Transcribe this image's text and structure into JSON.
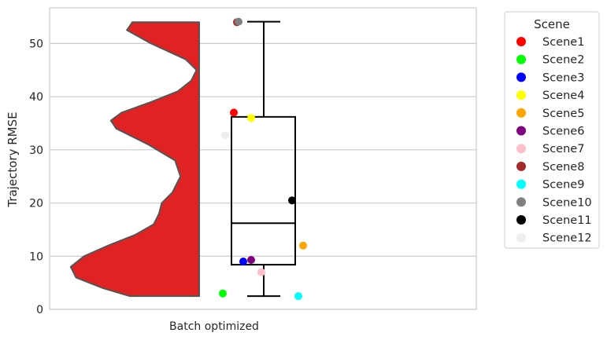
{
  "chart_data": {
    "type": "violin-box-strip",
    "category": "Batch optimized",
    "ylabel": "Trajectory RMSE",
    "xlabel": "",
    "ylim": [
      0,
      56.7
    ],
    "yticks": [
      0,
      10,
      20,
      30,
      40,
      50
    ],
    "grid": "horizontal",
    "violin": {
      "color": "#e02222",
      "edge_color": "#555555",
      "profile": [
        [
          2.5,
          0.52
        ],
        [
          4.0,
          0.72
        ],
        [
          6.0,
          0.92
        ],
        [
          8.0,
          0.96
        ],
        [
          10.0,
          0.86
        ],
        [
          12.0,
          0.68
        ],
        [
          14.0,
          0.48
        ],
        [
          16.0,
          0.34
        ],
        [
          18.0,
          0.3
        ],
        [
          20.0,
          0.28
        ],
        [
          22.0,
          0.2
        ],
        [
          25.0,
          0.14
        ],
        [
          28.0,
          0.18
        ],
        [
          31.0,
          0.38
        ],
        [
          34.0,
          0.62
        ],
        [
          35.5,
          0.66
        ],
        [
          37.0,
          0.58
        ],
        [
          39.0,
          0.36
        ],
        [
          41.0,
          0.16
        ],
        [
          43.0,
          0.06
        ],
        [
          45.0,
          0.02
        ],
        [
          47.0,
          0.1
        ],
        [
          50.0,
          0.36
        ],
        [
          52.5,
          0.54
        ],
        [
          54.0,
          0.5
        ]
      ]
    },
    "box": {
      "min": 2.5,
      "q1": 8.4,
      "median": 16.2,
      "q3": 36.2,
      "max": 54.1
    },
    "points": [
      {
        "name": "Scene1",
        "value": 37.0,
        "color": "#ff0000"
      },
      {
        "name": "Scene2",
        "value": 3.0,
        "color": "#00ff00"
      },
      {
        "name": "Scene3",
        "value": 9.0,
        "color": "#0000ff"
      },
      {
        "name": "Scene4",
        "value": 36.0,
        "color": "#ffff00"
      },
      {
        "name": "Scene5",
        "value": 12.0,
        "color": "#ffa500"
      },
      {
        "name": "Scene6",
        "value": 9.3,
        "color": "#800080"
      },
      {
        "name": "Scene7",
        "value": 7.0,
        "color": "#ffc0cb"
      },
      {
        "name": "Scene8",
        "value": 54.0,
        "color": "#a52a2a"
      },
      {
        "name": "Scene9",
        "value": 2.5,
        "color": "#00ffff"
      },
      {
        "name": "Scene10",
        "value": 54.1,
        "color": "#808080"
      },
      {
        "name": "Scene11",
        "value": 20.5,
        "color": "#000000"
      },
      {
        "name": "Scene12",
        "value": 32.7,
        "color": "#eeeeee"
      }
    ],
    "legend": {
      "title": "Scene",
      "placement": "outside-right-top"
    }
  }
}
